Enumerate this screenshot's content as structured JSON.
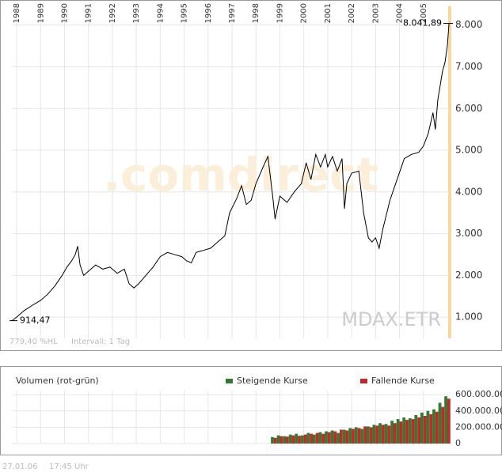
{
  "chart_data": [
    {
      "type": "line",
      "watermark": ".comdirect",
      "notes": [
        "779,40 %HL",
        "Intervall: 1 Tag"
      ],
      "xlim": [
        1987.8,
        2006.1
      ],
      "xticks": [
        1988,
        1989,
        1990,
        1991,
        1992,
        1993,
        1994,
        1995,
        1996,
        1997,
        1998,
        1999,
        2000,
        2001,
        2002,
        2003,
        2004,
        2005
      ],
      "ylim": [
        490,
        8450
      ],
      "yticks": [
        {
          "value": 1000,
          "label": "1.000"
        },
        {
          "value": 2000,
          "label": "2.000"
        },
        {
          "value": 3000,
          "label": "3.000"
        },
        {
          "value": 4000,
          "label": "4.000"
        },
        {
          "value": 5000,
          "label": "5.000"
        },
        {
          "value": 6000,
          "label": "6.000"
        },
        {
          "value": 7000,
          "label": "7.000"
        },
        {
          "value": 8000,
          "label": "8.000"
        }
      ],
      "grid": true,
      "x": [
        1987.8,
        1988.0,
        1988.3,
        1988.7,
        1989.0,
        1989.3,
        1989.6,
        1989.9,
        1990.1,
        1990.3,
        1990.45,
        1990.55,
        1990.65,
        1990.8,
        1991.0,
        1991.3,
        1991.6,
        1991.9,
        1992.2,
        1992.5,
        1992.7,
        1992.9,
        1993.1,
        1993.4,
        1993.7,
        1994.0,
        1994.3,
        1994.6,
        1994.9,
        1995.1,
        1995.3,
        1995.5,
        1995.8,
        1996.1,
        1996.4,
        1996.7,
        1996.9,
        1997.2,
        1997.4,
        1997.6,
        1997.8,
        1998.0,
        1998.3,
        1998.5,
        1998.7,
        1998.8,
        1999.0,
        1999.3,
        1999.6,
        1999.9,
        2000.1,
        2000.3,
        2000.5,
        2000.7,
        2000.9,
        2001.0,
        2001.2,
        2001.4,
        2001.6,
        2001.7,
        2001.8,
        2002.0,
        2002.3,
        2002.5,
        2002.7,
        2002.85,
        2003.0,
        2003.15,
        2003.3,
        2003.6,
        2003.9,
        2004.2,
        2004.5,
        2004.8,
        2005.0,
        2005.2,
        2005.4,
        2005.5,
        2005.6,
        2005.8,
        2005.9,
        2006.0,
        2006.07
      ],
      "series": [
        {
          "name": "MDAX.ETR",
          "color": "#000000",
          "values": [
            914.47,
            1000,
            1150,
            1300,
            1400,
            1550,
            1750,
            2000,
            2200,
            2350,
            2500,
            2700,
            2250,
            2000,
            2100,
            2250,
            2150,
            2200,
            2050,
            2150,
            1800,
            1700,
            1800,
            2000,
            2200,
            2450,
            2550,
            2500,
            2450,
            2350,
            2300,
            2550,
            2600,
            2650,
            2800,
            2950,
            3500,
            3850,
            4150,
            3700,
            3800,
            4200,
            4600,
            4850,
            3900,
            3350,
            3900,
            3750,
            4000,
            4200,
            4700,
            4300,
            4900,
            4600,
            4900,
            4600,
            4850,
            4500,
            4800,
            3600,
            4200,
            4450,
            4500,
            3500,
            2900,
            2800,
            2900,
            2650,
            3100,
            3800,
            4300,
            4800,
            4900,
            4950,
            5100,
            5400,
            5900,
            5500,
            6200,
            6900,
            7100,
            7500,
            8041.89
          ]
        }
      ],
      "annotations": [
        {
          "text": "914,47",
          "value": 914.47
        },
        {
          "text": "8.041,89",
          "value": 8041.89
        }
      ],
      "current_line_color": "#f7d9a0"
    },
    {
      "type": "bar",
      "title": "Volumen (rot-grün)",
      "xlim": [
        1987.8,
        2006.1
      ],
      "xticks": [
        1988,
        1989,
        1990,
        1991,
        1992,
        1993,
        1994,
        1995,
        1996,
        1997,
        1998,
        1999,
        2000,
        2001,
        2002,
        2003,
        2004,
        2005
      ],
      "ylim": [
        0,
        650000000
      ],
      "yticks": [
        0,
        {
          "value": 200000000,
          "label": "200.000.000"
        },
        {
          "value": 400000000,
          "label": "400.000.000"
        },
        {
          "value": 600000000,
          "label": "600.000.000"
        }
      ],
      "x": [
        1998.75,
        1999.0,
        1999.25,
        1999.5,
        1999.75,
        2000.0,
        2000.25,
        2000.5,
        2000.75,
        2001.0,
        2001.25,
        2001.5,
        2001.75,
        2002.0,
        2002.25,
        2002.5,
        2002.75,
        2003.0,
        2003.25,
        2003.5,
        2003.75,
        2004.0,
        2004.25,
        2004.5,
        2004.75,
        2005.0,
        2005.25,
        2005.5,
        2005.75,
        2006.0
      ],
      "series": [
        {
          "name": "Steigende Kurse",
          "color": "#2e7d32",
          "values": [
            80000000,
            100000000,
            90000000,
            110000000,
            120000000,
            100000000,
            130000000,
            110000000,
            140000000,
            150000000,
            160000000,
            130000000,
            170000000,
            190000000,
            200000000,
            180000000,
            210000000,
            230000000,
            250000000,
            240000000,
            280000000,
            300000000,
            320000000,
            310000000,
            350000000,
            380000000,
            400000000,
            420000000,
            500000000,
            580000000
          ]
        },
        {
          "name": "Fallende Kurse",
          "color": "#c62828",
          "values": [
            70000000,
            90000000,
            85000000,
            100000000,
            95000000,
            110000000,
            120000000,
            130000000,
            120000000,
            140000000,
            150000000,
            170000000,
            160000000,
            180000000,
            190000000,
            210000000,
            200000000,
            220000000,
            230000000,
            220000000,
            250000000,
            270000000,
            290000000,
            300000000,
            320000000,
            340000000,
            360000000,
            390000000,
            450000000,
            550000000
          ]
        }
      ]
    }
  ],
  "footer": {
    "date": "27.01.06",
    "time": "17:45 Uhr"
  }
}
